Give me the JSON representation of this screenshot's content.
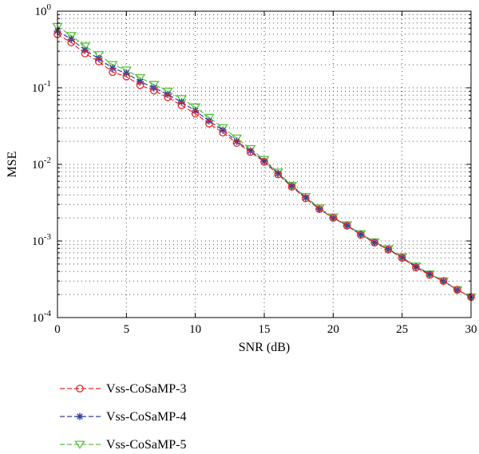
{
  "chart_data": {
    "type": "line",
    "xlabel": "SNR (dB)",
    "ylabel": "MSE",
    "xlim": [
      0,
      30
    ],
    "ylim": [
      0.0001,
      1
    ],
    "yscale": "log",
    "xticks": [
      0,
      5,
      10,
      15,
      20,
      25,
      30
    ],
    "yticks": [
      {
        "base": "10",
        "exp": "-4"
      },
      {
        "base": "10",
        "exp": "-3"
      },
      {
        "base": "10",
        "exp": "-2"
      },
      {
        "base": "10",
        "exp": "-1"
      },
      {
        "base": "10",
        "exp": "0"
      }
    ],
    "grid": "dotted",
    "legend_position": "bottom",
    "x": [
      0,
      1,
      2,
      3,
      4,
      5,
      6,
      7,
      8,
      9,
      10,
      11,
      12,
      13,
      14,
      15,
      16,
      17,
      18,
      19,
      20,
      21,
      22,
      23,
      24,
      25,
      26,
      27,
      28,
      29,
      30
    ],
    "series": [
      {
        "name": "Vss-CoSaMP-3",
        "color": "#e8282a",
        "marker": "circle",
        "values": [
          0.5,
          0.39,
          0.28,
          0.22,
          0.16,
          0.14,
          0.108,
          0.092,
          0.075,
          0.059,
          0.046,
          0.034,
          0.026,
          0.019,
          0.0145,
          0.0108,
          0.0074,
          0.0051,
          0.0036,
          0.0026,
          0.002,
          0.00158,
          0.0012,
          0.00095,
          0.00077,
          0.0006,
          0.00045,
          0.00036,
          0.0003,
          0.00023,
          0.000185
        ]
      },
      {
        "name": "Vss-CoSaMP-4",
        "color": "#2b3e9e",
        "marker": "star",
        "values": [
          0.55,
          0.43,
          0.31,
          0.24,
          0.18,
          0.155,
          0.12,
          0.1,
          0.082,
          0.065,
          0.05,
          0.037,
          0.028,
          0.02,
          0.015,
          0.011,
          0.0076,
          0.0052,
          0.0037,
          0.0026,
          0.002,
          0.0016,
          0.00122,
          0.00096,
          0.00078,
          0.00061,
          0.00046,
          0.00037,
          0.0003,
          0.00023,
          0.000185
        ]
      },
      {
        "name": "Vss-CoSaMP-5",
        "color": "#57c23a",
        "marker": "triangle-down",
        "values": [
          0.63,
          0.48,
          0.35,
          0.27,
          0.2,
          0.17,
          0.135,
          0.11,
          0.09,
          0.072,
          0.056,
          0.041,
          0.03,
          0.022,
          0.016,
          0.0115,
          0.0079,
          0.0053,
          0.0038,
          0.0027,
          0.00205,
          0.00162,
          0.00124,
          0.00097,
          0.00079,
          0.00062,
          0.00047,
          0.00037,
          0.0003,
          0.00023,
          0.000185
        ]
      }
    ]
  }
}
